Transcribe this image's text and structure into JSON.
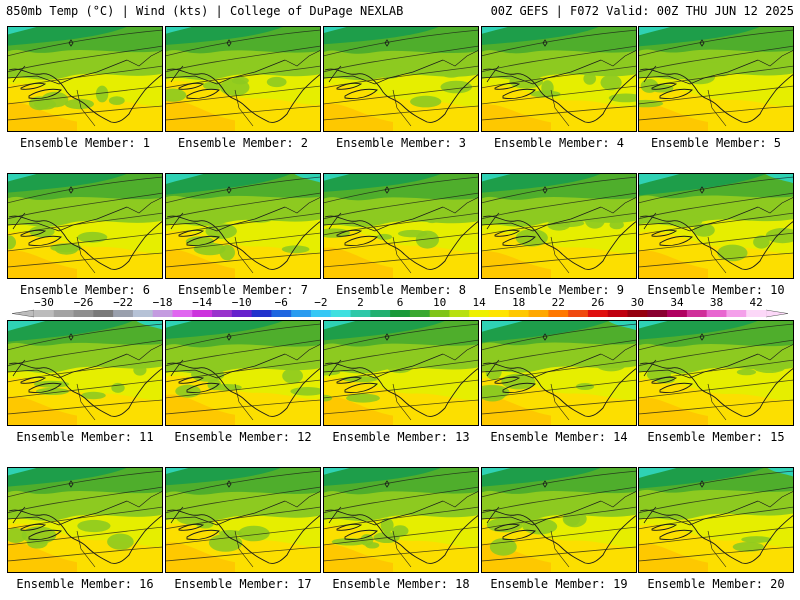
{
  "header": {
    "left": "850mb Temp (°C) | Wind (kts) | College of DuPage NEXLAB",
    "right": "00Z GEFS | F072 Valid: 00Z THU JUN 12 2025"
  },
  "member_label_prefix": "Ensemble Member: ",
  "members": [
    {
      "n": "1",
      "warmth": 0.55,
      "cold_intrusion": 0.55
    },
    {
      "n": "2",
      "warmth": 0.7,
      "cold_intrusion": 0.5
    },
    {
      "n": "3",
      "warmth": 0.5,
      "cold_intrusion": 0.45
    },
    {
      "n": "4",
      "warmth": 0.45,
      "cold_intrusion": 0.5
    },
    {
      "n": "5",
      "warmth": 0.5,
      "cold_intrusion": 0.6
    },
    {
      "n": "6",
      "warmth": 0.5,
      "cold_intrusion": 0.55
    },
    {
      "n": "7",
      "warmth": 0.55,
      "cold_intrusion": 0.7
    },
    {
      "n": "8",
      "warmth": 0.65,
      "cold_intrusion": 0.5
    },
    {
      "n": "9",
      "warmth": 0.45,
      "cold_intrusion": 0.55
    },
    {
      "n": "10",
      "warmth": 0.5,
      "cold_intrusion": 0.75
    },
    {
      "n": "11",
      "warmth": 0.55,
      "cold_intrusion": 0.7
    },
    {
      "n": "12",
      "warmth": 0.65,
      "cold_intrusion": 0.5
    },
    {
      "n": "13",
      "warmth": 0.55,
      "cold_intrusion": 0.6
    },
    {
      "n": "14",
      "warmth": 0.55,
      "cold_intrusion": 0.75
    },
    {
      "n": "15",
      "warmth": 0.5,
      "cold_intrusion": 0.55
    },
    {
      "n": "16",
      "warmth": 0.6,
      "cold_intrusion": 0.55
    },
    {
      "n": "17",
      "warmth": 0.6,
      "cold_intrusion": 0.45
    },
    {
      "n": "18",
      "warmth": 0.5,
      "cold_intrusion": 0.5
    },
    {
      "n": "19",
      "warmth": 0.55,
      "cold_intrusion": 0.55
    },
    {
      "n": "20",
      "warmth": 0.55,
      "cold_intrusion": 0.7
    }
  ],
  "colorbar": {
    "tick_labels": [
      "−30",
      "−26",
      "−22",
      "−18",
      "−14",
      "−10",
      "−6",
      "−2",
      "2",
      "6",
      "10",
      "14",
      "18",
      "22",
      "26",
      "30",
      "34",
      "38",
      "42"
    ],
    "colors": [
      "#bcbcbc",
      "#a3a3a3",
      "#8f8f8f",
      "#7a7a7a",
      "#9aa0ad",
      "#b6c2d6",
      "#c49be0",
      "#e066f0",
      "#cc33dd",
      "#9933cc",
      "#6622cc",
      "#2233cc",
      "#1f66e0",
      "#2a9cf0",
      "#36c8f5",
      "#3fe0e0",
      "#2ec8a8",
      "#22b070",
      "#1a9a3a",
      "#3aa830",
      "#80c418",
      "#b8e010",
      "#eef000",
      "#ffe400",
      "#ffc800",
      "#ffa800",
      "#ff7800",
      "#f04a10",
      "#e01010",
      "#c00010",
      "#960010",
      "#8a0030",
      "#b00060",
      "#d0309a",
      "#e866d0",
      "#f4a0ea",
      "#fcd8f8"
    ],
    "field_colors": {
      "cold": "#2fd2b4",
      "cool": "#1e9e4a",
      "mild": "#4fae2c",
      "temperate": "#8dca20",
      "warm": "#e6ee00",
      "warmer": "#ffdc00",
      "hot": "#ffc000"
    },
    "line_color": "#1a1a1a"
  }
}
